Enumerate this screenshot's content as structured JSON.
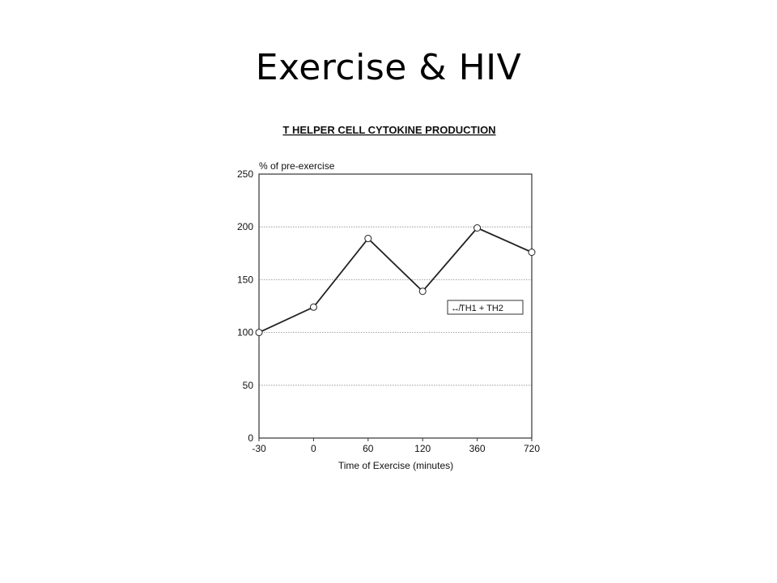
{
  "slide": {
    "title": "Exercise & HIV"
  },
  "chart_data": {
    "type": "line",
    "title": "T HELPER CELL CYTOKINE PRODUCTION",
    "ylabel": "% of pre-exercise",
    "xlabel": "Time of Exercise (minutes)",
    "categories": [
      "-30",
      "0",
      "60",
      "120",
      "360",
      "720"
    ],
    "series": [
      {
        "name": "↮TH1 + TH2",
        "values": [
          100,
          124,
          189,
          139,
          199,
          176
        ],
        "color": "#222222",
        "marker": "open-circle"
      }
    ],
    "yticks": [
      0,
      50,
      100,
      150,
      200,
      250
    ],
    "ylim": [
      0,
      250
    ],
    "grid": "horizontal-dotted",
    "legend_placement": "right-middle"
  }
}
